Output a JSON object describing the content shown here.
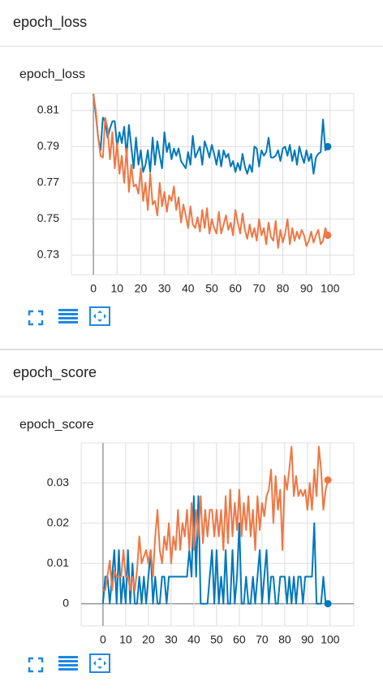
{
  "sections": [
    "epoch_loss",
    "epoch_score"
  ],
  "chart_data": [
    {
      "type": "line",
      "title": "epoch_loss",
      "x": [
        0,
        1,
        2,
        3,
        4,
        5,
        6,
        7,
        8,
        9,
        10,
        11,
        12,
        13,
        14,
        15,
        16,
        17,
        18,
        19,
        20,
        21,
        22,
        23,
        24,
        25,
        26,
        27,
        28,
        29,
        30,
        31,
        32,
        33,
        34,
        35,
        36,
        37,
        38,
        39,
        40,
        41,
        42,
        43,
        44,
        45,
        46,
        47,
        48,
        49,
        50,
        51,
        52,
        53,
        54,
        55,
        56,
        57,
        58,
        59,
        60,
        61,
        62,
        63,
        64,
        65,
        66,
        67,
        68,
        69,
        70,
        71,
        72,
        73,
        74,
        75,
        76,
        77,
        78,
        79,
        80,
        81,
        82,
        83,
        84,
        85,
        86,
        87,
        88,
        89,
        90,
        91,
        92,
        93,
        94,
        95,
        96,
        97,
        98,
        99
      ],
      "series": [
        {
          "color": "#0077bb",
          "values": [
            0.819,
            0.808,
            0.795,
            0.788,
            0.806,
            0.804,
            0.795,
            0.8,
            0.804,
            0.804,
            0.79,
            0.798,
            0.792,
            0.801,
            0.785,
            0.802,
            0.79,
            0.778,
            0.795,
            0.78,
            0.788,
            0.776,
            0.78,
            0.788,
            0.776,
            0.795,
            0.78,
            0.793,
            0.785,
            0.778,
            0.798,
            0.787,
            0.792,
            0.783,
            0.789,
            0.785,
            0.789,
            0.782,
            0.78,
            0.778,
            0.787,
            0.78,
            0.796,
            0.784,
            0.787,
            0.79,
            0.78,
            0.793,
            0.789,
            0.784,
            0.791,
            0.786,
            0.78,
            0.788,
            0.779,
            0.788,
            0.784,
            0.786,
            0.779,
            0.782,
            0.776,
            0.781,
            0.777,
            0.786,
            0.779,
            0.775,
            0.78,
            0.776,
            0.79,
            0.789,
            0.779,
            0.788,
            0.785,
            0.787,
            0.795,
            0.784,
            0.784,
            0.785,
            0.788,
            0.782,
            0.789,
            0.79,
            0.785,
            0.791,
            0.782,
            0.788,
            0.78,
            0.79,
            0.785,
            0.781,
            0.788,
            0.782,
            0.786,
            0.775,
            0.784,
            0.786,
            0.787,
            0.805,
            0.788,
            0.79
          ]
        },
        {
          "color": "#ee7744",
          "values": [
            0.819,
            0.81,
            0.795,
            0.785,
            0.784,
            0.806,
            0.8,
            0.783,
            0.798,
            0.778,
            0.792,
            0.775,
            0.785,
            0.77,
            0.789,
            0.765,
            0.78,
            0.768,
            0.769,
            0.764,
            0.778,
            0.76,
            0.77,
            0.755,
            0.775,
            0.758,
            0.76,
            0.752,
            0.77,
            0.757,
            0.765,
            0.754,
            0.763,
            0.76,
            0.768,
            0.755,
            0.762,
            0.748,
            0.758,
            0.752,
            0.745,
            0.757,
            0.747,
            0.745,
            0.751,
            0.743,
            0.755,
            0.745,
            0.756,
            0.742,
            0.75,
            0.745,
            0.742,
            0.754,
            0.742,
            0.747,
            0.752,
            0.744,
            0.748,
            0.741,
            0.755,
            0.748,
            0.742,
            0.753,
            0.744,
            0.739,
            0.747,
            0.74,
            0.745,
            0.738,
            0.75,
            0.741,
            0.745,
            0.736,
            0.748,
            0.74,
            0.738,
            0.749,
            0.734,
            0.744,
            0.737,
            0.742,
            0.75,
            0.736,
            0.745,
            0.738,
            0.743,
            0.739,
            0.744,
            0.741,
            0.735,
            0.738,
            0.743,
            0.737,
            0.741,
            0.744,
            0.736,
            0.738,
            0.745,
            0.741
          ]
        }
      ],
      "xlim": [
        -9.3,
        110
      ],
      "xticks": [
        0,
        10,
        20,
        30,
        40,
        50,
        60,
        70,
        80,
        90,
        100
      ],
      "ylim": [
        0.7192,
        0.8194
      ],
      "yticks": [
        0.73,
        0.75,
        0.77,
        0.79,
        0.81
      ],
      "grid": true
    },
    {
      "type": "line",
      "title": "epoch_score",
      "x": [
        0,
        1,
        2,
        3,
        4,
        5,
        6,
        7,
        8,
        9,
        10,
        11,
        12,
        13,
        14,
        15,
        16,
        17,
        18,
        19,
        20,
        21,
        22,
        23,
        24,
        25,
        26,
        27,
        28,
        29,
        30,
        31,
        32,
        33,
        34,
        35,
        36,
        37,
        38,
        39,
        40,
        41,
        42,
        43,
        44,
        45,
        46,
        47,
        48,
        49,
        50,
        51,
        52,
        53,
        54,
        55,
        56,
        57,
        58,
        59,
        60,
        61,
        62,
        63,
        64,
        65,
        66,
        67,
        68,
        69,
        70,
        71,
        72,
        73,
        74,
        75,
        76,
        77,
        78,
        79,
        80,
        81,
        82,
        83,
        84,
        85,
        86,
        87,
        88,
        89,
        90,
        91,
        92,
        93,
        94,
        95,
        96,
        97,
        98,
        99
      ],
      "series": [
        {
          "color": "#0077bb",
          "values": [
            0,
            0.0067,
            0.0067,
            0,
            0.0067,
            0.0133,
            0,
            0.0133,
            0,
            0.0067,
            0,
            0.0133,
            0,
            0.01,
            0,
            0,
            0.0067,
            0,
            0.0067,
            0,
            0.0067,
            0.0133,
            0,
            0.0067,
            0,
            0,
            0.0067,
            0.0067,
            0,
            0.0067,
            0.0067,
            0.0067,
            0.0067,
            0.0067,
            0.0067,
            0.0067,
            0.0067,
            0.0067,
            0.0133,
            0.0067,
            0.0267,
            0.0067,
            0.0267,
            0,
            0,
            0,
            0,
            0.0067,
            0.0133,
            0,
            0.0133,
            0,
            0.0067,
            0,
            0.0133,
            0,
            0,
            0.0133,
            0,
            0.0067,
            0.02,
            0,
            0,
            0.0067,
            0,
            0,
            0.0067,
            0,
            0.0067,
            0.0133,
            0,
            0.0067,
            0.0133,
            0,
            0.0067,
            0.0067,
            0,
            0,
            0.0067,
            0.0067,
            0.0067,
            0,
            0.0067,
            0,
            0.0067,
            0,
            0.0067,
            0.0067,
            0,
            0.0067,
            0.0067,
            0.0067,
            0.0067,
            0.02,
            0,
            0,
            0,
            0.0067,
            0,
            0
          ]
        },
        {
          "color": "#ee7744",
          "values": [
            0.0033,
            0.0033,
            0.007,
            0.0107,
            0.0033,
            0.0083,
            0.0067,
            0.0067,
            0.0067,
            0.0133,
            0.0067,
            0.0067,
            0.0033,
            0.0067,
            0.0033,
            0.0083,
            0.0167,
            0.01,
            0.0117,
            0.0133,
            0.01,
            0.0133,
            0.0067,
            0.0167,
            0.0233,
            0.0133,
            0.01,
            0.0167,
            0.0133,
            0.02,
            0.01,
            0.0167,
            0.0133,
            0.0233,
            0.0133,
            0.02,
            0.0167,
            0.0233,
            0.0133,
            0.025,
            0.0133,
            0.0233,
            0.0167,
            0.0267,
            0.015,
            0.0233,
            0.0167,
            0.0233,
            0.0233,
            0.0167,
            0.0233,
            0.0167,
            0.0233,
            0.0133,
            0.0267,
            0.015,
            0.0283,
            0.0167,
            0.025,
            0.0183,
            0.0283,
            0.0167,
            0.025,
            0.0183,
            0.0267,
            0.0167,
            0.0233,
            0.0133,
            0.0267,
            0.0183,
            0.025,
            0.0217,
            0.0267,
            0.0283,
            0.0333,
            0.02,
            0.0317,
            0.0233,
            0.0283,
            0.0133,
            0.0317,
            0.0283,
            0.0333,
            0.039,
            0.0267,
            0.0317,
            0.0267,
            0.0283,
            0.0267,
            0.0283,
            0.0233,
            0.03,
            0.0233,
            0.0333,
            0.0267,
            0.039,
            0.0333,
            0.0233,
            0.0283,
            0.0307
          ]
        }
      ],
      "xlim": [
        -9.6,
        110.4
      ],
      "xticks": [
        0,
        10,
        20,
        30,
        40,
        50,
        60,
        70,
        80,
        90,
        100
      ],
      "ylim": [
        -0.0055,
        0.0399
      ],
      "yticks": [
        0,
        0.01,
        0.02,
        0.03
      ],
      "grid": true
    }
  ]
}
